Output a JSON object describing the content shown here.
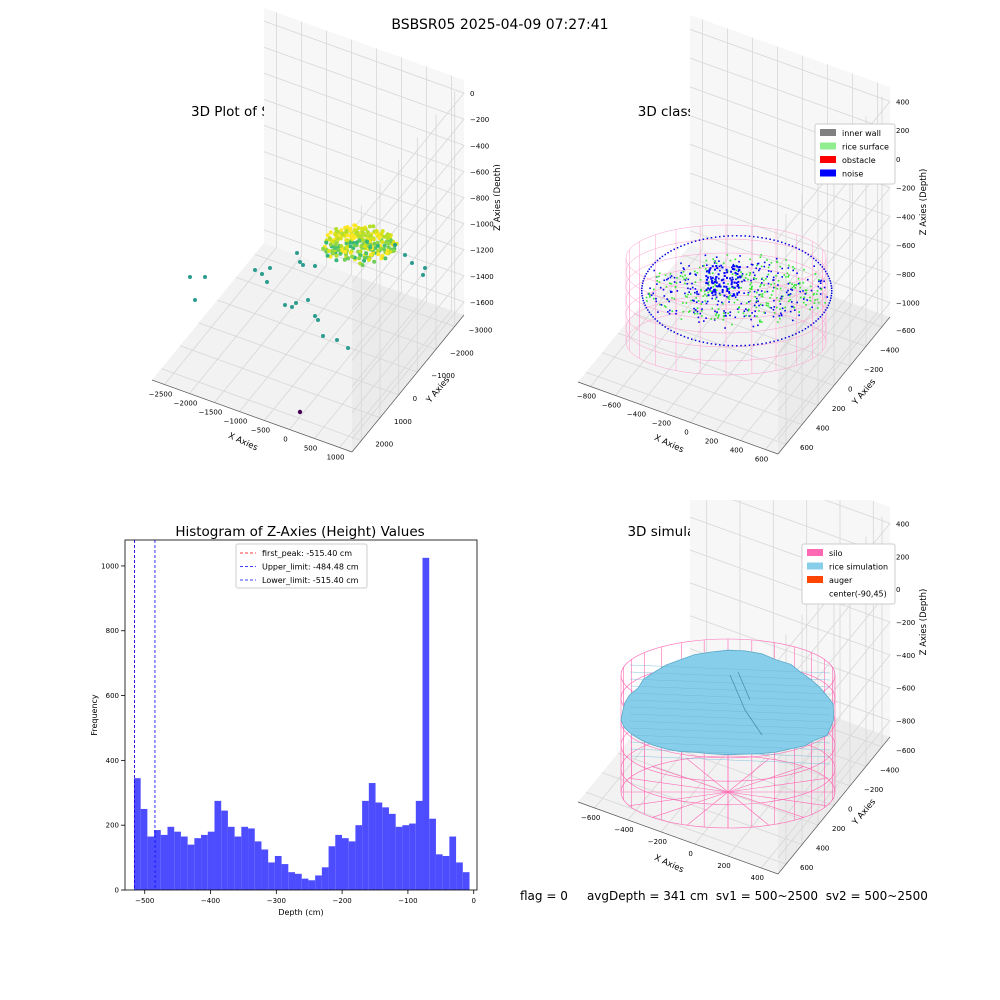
{
  "figure": {
    "suptitle": "BSBSR05 2025-04-09 07:27:41",
    "footer": {
      "flag": "flag = 0",
      "avg_depth": "avgDepth = 341 cm",
      "sv1": "sv1 = 500~2500",
      "sv2": "sv2 = 500~2500"
    }
  },
  "chart_data": [
    {
      "type": "scatter",
      "title": "3D Plot of Silo Interior(row data)",
      "xlabel": "X Axies",
      "ylabel": "Y Axies",
      "zlabel": "Z Axies (Depth)",
      "x_ticks": [
        "−2500",
        "−2000",
        "−1500",
        "−1000",
        "−500",
        "0",
        "500",
        "1000"
      ],
      "y_ticks": [
        "2000",
        "1000",
        "0",
        "−1000",
        "−2000",
        "−3000"
      ],
      "z_ticks": [
        "0",
        "−200",
        "−400",
        "−600",
        "−800",
        "−1000",
        "−1200",
        "−1400",
        "−1600"
      ],
      "colormap": "viridis",
      "note": "point cloud colored by depth; dense yellow-green cluster near rice surface plus scattered teal points"
    },
    {
      "type": "scatter",
      "title": "3D classify of Silo Interior",
      "xlabel": "X Axies",
      "ylabel": "Y Axies",
      "zlabel": "Z Axies (Depth)",
      "x_ticks": [
        "−800",
        "−600",
        "−400",
        "−200",
        "0",
        "200",
        "400",
        "600"
      ],
      "y_ticks": [
        "600",
        "400",
        "200",
        "0",
        "−200",
        "−400",
        "−600"
      ],
      "z_ticks": [
        "400",
        "200",
        "0",
        "−200",
        "−400",
        "−600",
        "−800",
        "−1000"
      ],
      "legend": [
        {
          "name": "inner wall",
          "color": "#808080"
        },
        {
          "name": "rice surface",
          "color": "#90ee90"
        },
        {
          "name": "obstacle",
          "color": "#ff0000"
        },
        {
          "name": "noise",
          "color": "#0000ff"
        }
      ],
      "legend_loc": "top-right"
    },
    {
      "type": "bar",
      "title": "Histogram of Z-Axies (Height) Values",
      "xlabel": "Depth (cm)",
      "ylabel": "Frequency",
      "xlim": [
        -530,
        5
      ],
      "ylim": [
        0,
        1080
      ],
      "x_ticks": [
        -500,
        -400,
        -300,
        -200,
        -100,
        0
      ],
      "y_ticks": [
        0,
        200,
        400,
        600,
        800,
        1000
      ],
      "bar_color": "#4d4dff",
      "bin_start": -516.4,
      "bin_width": 10.2,
      "values": [
        345,
        250,
        165,
        185,
        170,
        195,
        180,
        165,
        140,
        160,
        170,
        180,
        275,
        245,
        195,
        165,
        195,
        190,
        150,
        125,
        85,
        105,
        80,
        55,
        50,
        35,
        30,
        45,
        70,
        135,
        170,
        160,
        150,
        200,
        275,
        330,
        270,
        255,
        235,
        195,
        200,
        205,
        275,
        1025,
        220,
        110,
        105,
        165,
        85,
        55
      ],
      "vlines": [
        {
          "label": "first_peak: -515.40 cm",
          "x": -515.4,
          "color": "#ff0000"
        },
        {
          "label": "Upper_limit: -484.48 cm",
          "x": -484.48,
          "color": "#0000ff"
        },
        {
          "label": "Lower_limit: -515.40 cm",
          "x": -515.4,
          "color": "#0000ff"
        }
      ],
      "legend_loc": "top-center"
    },
    {
      "type": "surface",
      "title": "3D simulation of Silo Interior",
      "xlabel": "X Axies",
      "ylabel": "Y Axies",
      "zlabel": "Z Axies (Depth)",
      "x_ticks": [
        "−600",
        "−400",
        "−200",
        "0",
        "200",
        "400"
      ],
      "y_ticks": [
        "600",
        "400",
        "200",
        "0",
        "−200",
        "−400",
        "−600"
      ],
      "z_ticks": [
        "400",
        "200",
        "0",
        "−200",
        "−400",
        "−600",
        "−800"
      ],
      "legend": [
        {
          "name": "silo",
          "color": "#ff69b4"
        },
        {
          "name": "rice simulation",
          "color": "#87ceeb"
        },
        {
          "name": "auger",
          "color": "#ff4500"
        },
        {
          "name": "center(-90,45)",
          "color": ""
        }
      ],
      "legend_loc": "top-right"
    }
  ]
}
